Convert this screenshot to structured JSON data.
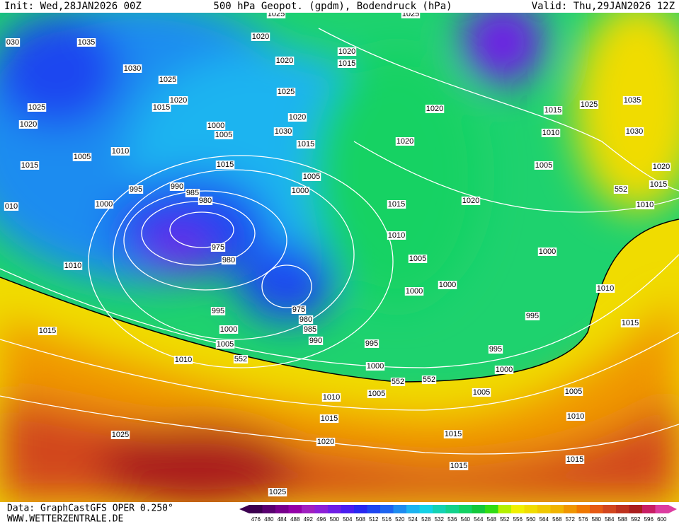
{
  "header": {
    "init": "Init: Wed,28JAN2026 00Z",
    "title": "500 hPa Geopot. (gpdm), Bodendruck (hPa)",
    "valid": "Valid: Thu,29JAN2026 12Z"
  },
  "footer": {
    "source": "Data: GraphCastGFS OPER 0.250°",
    "site": "WWW.WETTERZENTRALE.DE"
  },
  "isobar_labels": [
    "1025",
    "1025",
    "1035",
    "1020",
    "1020",
    "1020",
    "1015",
    "1030",
    "1025",
    "1025",
    "1020",
    "1015",
    "1025",
    "1020",
    "1020",
    "1015",
    "1025",
    "1035",
    "1030",
    "1010",
    "1020",
    "1000",
    "1005",
    "1030",
    "1015",
    "1020",
    "1005",
    "1010",
    "1015",
    "1015",
    "1005",
    "1020",
    "1015",
    "552",
    "1005",
    "1000",
    "995",
    "990",
    "985",
    "980",
    "1000",
    "1015",
    "1020",
    "1010",
    "1010",
    "975",
    "980",
    "1000",
    "1005",
    "1010",
    "1000",
    "1000",
    "1010",
    "975",
    "980",
    "985",
    "990",
    "995",
    "995",
    "1015",
    "1000",
    "1015",
    "1005",
    "995",
    "995",
    "552",
    "1010",
    "1000",
    "1000",
    "552",
    "552",
    "1005",
    "1005",
    "1005",
    "1010",
    "1015",
    "1010",
    "1015",
    "1025",
    "1020",
    "1015",
    "1015",
    "1025",
    "030",
    "010"
  ],
  "colorbar": {
    "levels": [
      476,
      480,
      484,
      488,
      492,
      496,
      500,
      504,
      508,
      512,
      516,
      520,
      524,
      528,
      532,
      536,
      540,
      544,
      548,
      552,
      556,
      560,
      564,
      568,
      572,
      576,
      580,
      584,
      588,
      592,
      596,
      600
    ],
    "colors": [
      "#3c0050",
      "#5a0070",
      "#78008c",
      "#9400a8",
      "#a020c0",
      "#8c20d8",
      "#6e1ee6",
      "#4a1ef0",
      "#2828f0",
      "#1e46f0",
      "#1e64f0",
      "#1e8cf0",
      "#1eb4f0",
      "#14d2e6",
      "#14d2b4",
      "#14d28c",
      "#14d264",
      "#14c83c",
      "#32dc14",
      "#b4f000",
      "#f0f000",
      "#f0dc00",
      "#f0c800",
      "#f0b400",
      "#f09600",
      "#f07800",
      "#e65a14",
      "#d2461e",
      "#be321e",
      "#aa1e1e",
      "#c81e64",
      "#dc3ca0"
    ]
  }
}
